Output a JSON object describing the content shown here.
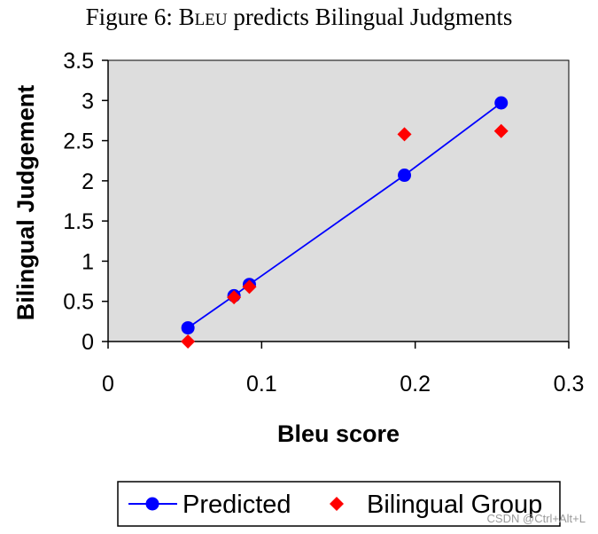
{
  "caption": {
    "prefix": "Figure 6: ",
    "smallcaps": "Bleu",
    "suffix": " predicts Bilingual Judgments"
  },
  "watermark": "CSDN @Ctrl+Alt+L",
  "chart_data": {
    "type": "scatter",
    "xlabel": "Bleu score",
    "ylabel": "Bilingual Judgement",
    "xlim": [
      0,
      0.3
    ],
    "ylim": [
      0,
      3.5
    ],
    "xticks": [
      "0",
      "0.1",
      "0.2",
      "0.3"
    ],
    "yticks": [
      "0",
      "0.5",
      "1",
      "1.5",
      "2",
      "2.5",
      "3",
      "3.5"
    ],
    "grid": false,
    "legend_position": "bottom",
    "series": [
      {
        "name": "Predicted",
        "marker": "circle",
        "line": true,
        "color": "#0000ff",
        "x": [
          0.052,
          0.082,
          0.092,
          0.193,
          0.256
        ],
        "y": [
          0.17,
          0.57,
          0.71,
          2.07,
          2.97
        ]
      },
      {
        "name": "Bilingual Group",
        "marker": "diamond",
        "line": false,
        "color": "#ff0000",
        "x": [
          0.052,
          0.082,
          0.092,
          0.193,
          0.256
        ],
        "y": [
          0.0,
          0.55,
          0.68,
          2.58,
          2.62
        ]
      }
    ],
    "plot_background": "#dddddd"
  }
}
